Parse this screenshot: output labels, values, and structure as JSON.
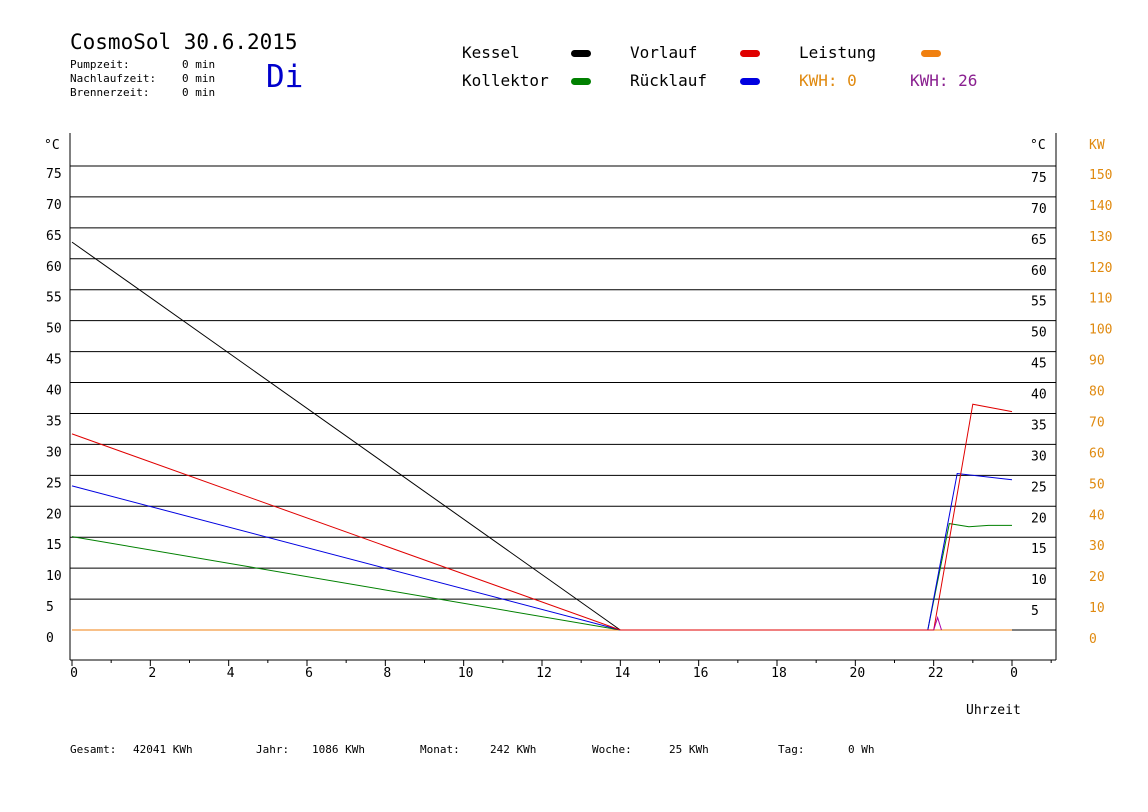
{
  "header": {
    "title": "CosmoSol 30.6.2015",
    "day": "Di",
    "info": [
      {
        "label": "Pumpzeit:",
        "value": "0 min"
      },
      {
        "label": "Nachlaufzeit:",
        "value": "0 min"
      },
      {
        "label": "Brennerzeit:",
        "value": "0 min"
      }
    ]
  },
  "legend": {
    "kessel": {
      "label": "Kessel",
      "color": "#000000"
    },
    "vorlauf": {
      "label": "Vorlauf",
      "color": "#e00000"
    },
    "leistung": {
      "label": "Leistung",
      "color": "#f08010"
    },
    "kollektor": {
      "label": "Kollektor",
      "color": "#008000"
    },
    "ruecklauf": {
      "label": "Rücklauf",
      "color": "#0000e0"
    },
    "kwh_orange": "KWH: 0",
    "kwh_purple": "KWH: 26"
  },
  "footer": {
    "gesamt_label": "Gesamt:",
    "gesamt_value": "42041 KWh",
    "jahr_label": "Jahr:",
    "jahr_value": "1086 KWh",
    "monat_label": "Monat:",
    "monat_value": "242 KWh",
    "woche_label": "Woche:",
    "woche_value": "25 KWh",
    "tag_label": "Tag:",
    "tag_value": "0 Wh"
  },
  "chart_data": {
    "type": "line",
    "xlabel": "Uhrzeit",
    "ylabel_left": "°C",
    "ylabel_right": "°C",
    "ylabel_right2": "KW",
    "xlim": [
      0,
      24
    ],
    "ylim": [
      0,
      75
    ],
    "y2lim": [
      0,
      150
    ],
    "x_ticks": [
      "0",
      "2",
      "4",
      "6",
      "8",
      "10",
      "12",
      "14",
      "16",
      "18",
      "20",
      "22",
      "0"
    ],
    "y_ticks": [
      0,
      5,
      10,
      15,
      20,
      25,
      30,
      35,
      40,
      45,
      50,
      55,
      60,
      65,
      70,
      75
    ],
    "y2_ticks": [
      0,
      10,
      20,
      30,
      40,
      50,
      60,
      70,
      80,
      90,
      100,
      110,
      120,
      130,
      140,
      150
    ],
    "grid": true,
    "series": [
      {
        "name": "Kessel",
        "color": "#000000",
        "points": [
          [
            0,
            62.7
          ],
          [
            14,
            0
          ]
        ]
      },
      {
        "name": "Vorlauf",
        "color": "#e00000",
        "points": [
          [
            0,
            31.7
          ],
          [
            14,
            0
          ],
          [
            22.0,
            0
          ],
          [
            23.0,
            36.5
          ],
          [
            24,
            35.3
          ]
        ]
      },
      {
        "name": "Rücklauf",
        "color": "#0000e0",
        "points": [
          [
            0,
            23.3
          ],
          [
            14,
            0
          ],
          [
            21.85,
            0
          ],
          [
            22.6,
            25.3
          ],
          [
            24,
            24.3
          ]
        ]
      },
      {
        "name": "Kollektor",
        "color": "#008000",
        "points": [
          [
            0,
            15.1
          ],
          [
            14,
            0
          ],
          [
            21.85,
            0
          ],
          [
            22.4,
            17.2
          ],
          [
            22.9,
            16.7
          ],
          [
            23.4,
            16.9
          ],
          [
            24,
            16.9
          ]
        ]
      },
      {
        "name": "Leistung",
        "color": "#f08010",
        "points": [
          [
            0,
            0
          ],
          [
            24,
            0
          ]
        ]
      },
      {
        "name": "",
        "color": "#aa00aa",
        "points": [
          [
            22.0,
            0
          ],
          [
            22.1,
            2.0
          ],
          [
            22.2,
            0
          ]
        ]
      },
      {
        "name": "",
        "color": "#40e0e0",
        "points": [
          [
            0,
            0
          ],
          [
            24,
            0
          ]
        ]
      }
    ]
  }
}
